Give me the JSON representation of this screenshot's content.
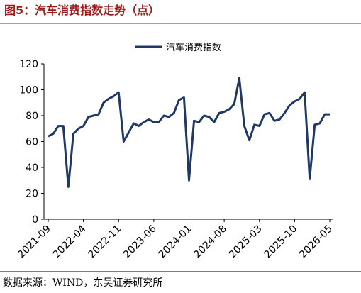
{
  "title": "图5：汽车消费指数走势（点）",
  "source": "数据来源：WIND，东吴证券研究所",
  "chart_data": {
    "type": "line",
    "categories": [
      "2021-09",
      null,
      null,
      null,
      null,
      null,
      null,
      "2022-04",
      null,
      null,
      null,
      null,
      null,
      null,
      "2022-11",
      null,
      null,
      null,
      null,
      null,
      null,
      "2023-06",
      null,
      null,
      null,
      null,
      null,
      null,
      "2024-01",
      null,
      null,
      null,
      null,
      null,
      null,
      "2024-08",
      null,
      null,
      null,
      null,
      null,
      null,
      "2025-03",
      null,
      null,
      null,
      null,
      null,
      null,
      "2025-10",
      null,
      null,
      null,
      null,
      null,
      null,
      "2026-05"
    ],
    "series": [
      {
        "name": "汽车消费指数",
        "color": "#1f3864",
        "values": [
          64,
          66,
          72,
          72,
          25,
          66,
          70,
          72,
          79,
          80,
          81,
          90,
          93,
          95,
          98,
          60,
          67,
          74,
          72,
          75,
          77,
          75,
          75,
          80,
          79,
          82,
          92,
          94,
          30,
          76,
          75,
          80,
          79,
          75,
          82,
          83,
          85,
          89,
          109,
          72,
          61,
          73,
          72,
          81,
          82,
          76,
          77,
          82,
          88,
          91,
          93,
          98,
          31,
          73,
          74,
          81,
          81
        ]
      }
    ],
    "ylim": [
      0,
      120
    ],
    "yticks": [
      0,
      20,
      40,
      60,
      80,
      100,
      120
    ],
    "grid": false,
    "legend": "top"
  }
}
